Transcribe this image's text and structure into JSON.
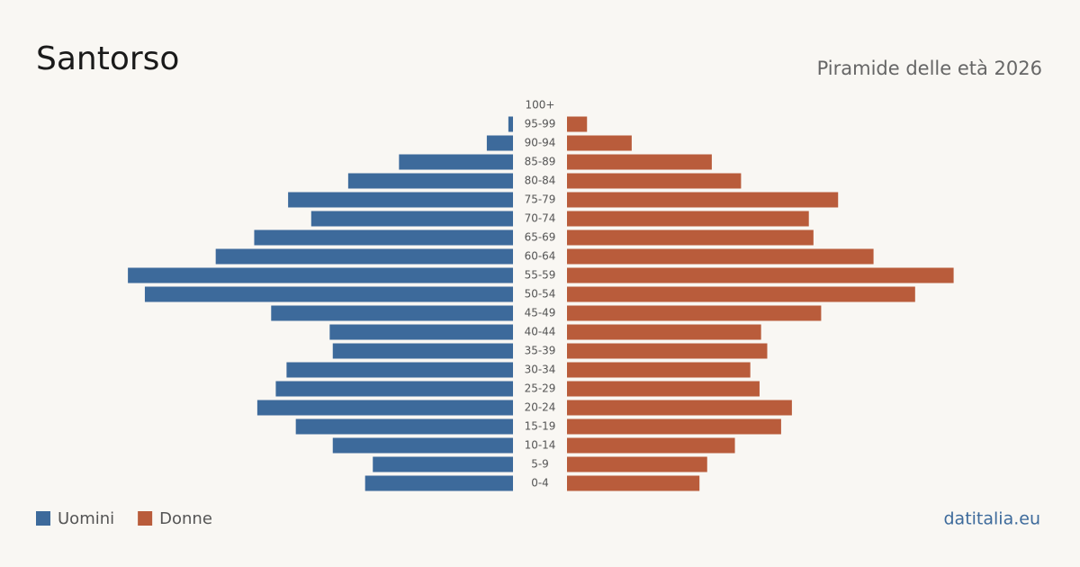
{
  "chart_data": {
    "type": "pyramid",
    "title": "Santorso",
    "subtitle": "Piramide delle età 2026",
    "source": "datitalia.eu",
    "categories": [
      "100+",
      "95-99",
      "90-94",
      "85-89",
      "80-84",
      "75-79",
      "70-74",
      "65-69",
      "60-64",
      "55-59",
      "50-54",
      "45-49",
      "40-44",
      "35-39",
      "30-34",
      "25-29",
      "20-24",
      "15-19",
      "10-14",
      "5-9",
      "0-4"
    ],
    "xlim": [
      0,
      260
    ],
    "legend": "bottom-left",
    "series": [
      {
        "name": "Uomini",
        "color": "#3d6a9b",
        "values": [
          0,
          3,
          17,
          74,
          107,
          146,
          131,
          168,
          193,
          250,
          239,
          157,
          119,
          117,
          147,
          154,
          166,
          141,
          117,
          91,
          96
        ]
      },
      {
        "name": "Donne",
        "color": "#b95c3b",
        "values": [
          0,
          13,
          42,
          94,
          113,
          176,
          157,
          160,
          199,
          251,
          226,
          165,
          126,
          130,
          119,
          125,
          146,
          139,
          109,
          91,
          86
        ]
      }
    ]
  }
}
